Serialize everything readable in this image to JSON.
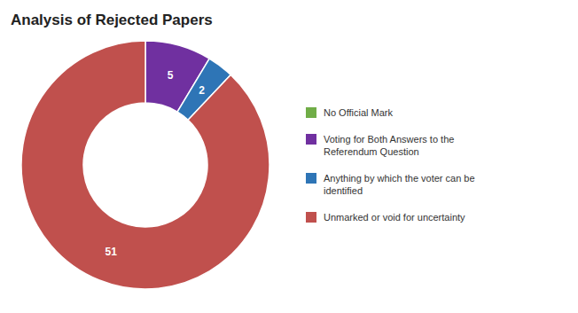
{
  "chart_data": {
    "type": "donut",
    "title": "Analysis of Rejected Papers",
    "categories": [
      "No Official Mark",
      "Voting for Both Answers to the\nReferendum Question",
      "Anything by which the voter can be\nidentified",
      "Unmarked or void for uncertainty"
    ],
    "values": [
      0,
      5,
      2,
      51
    ],
    "colors": [
      "#70ad47",
      "#7030a0",
      "#2e75b6",
      "#c0504d"
    ],
    "data_labels": true,
    "legend": "right"
  }
}
